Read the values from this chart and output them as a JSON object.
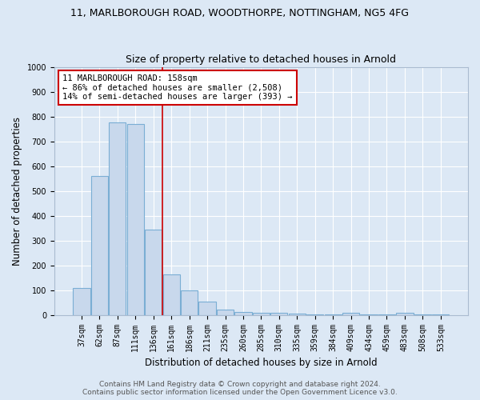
{
  "title": "11, MARLBOROUGH ROAD, WOODTHORPE, NOTTINGHAM, NG5 4FG",
  "subtitle": "Size of property relative to detached houses in Arnold",
  "xlabel": "Distribution of detached houses by size in Arnold",
  "ylabel": "Number of detached properties",
  "categories": [
    "37sqm",
    "62sqm",
    "87sqm",
    "111sqm",
    "136sqm",
    "161sqm",
    "186sqm",
    "211sqm",
    "235sqm",
    "260sqm",
    "285sqm",
    "310sqm",
    "335sqm",
    "359sqm",
    "384sqm",
    "409sqm",
    "434sqm",
    "459sqm",
    "483sqm",
    "508sqm",
    "533sqm"
  ],
  "values": [
    110,
    560,
    775,
    770,
    345,
    165,
    100,
    55,
    20,
    13,
    10,
    8,
    5,
    3,
    1,
    8,
    1,
    1,
    10,
    1,
    1
  ],
  "bar_color": "#c8d8ec",
  "bar_edge_color": "#7aaed4",
  "red_line_x": 4.5,
  "annotation_text": "11 MARLBOROUGH ROAD: 158sqm\n← 86% of detached houses are smaller (2,508)\n14% of semi-detached houses are larger (393) →",
  "annotation_box_color": "#ffffff",
  "annotation_box_edge_color": "#cc0000",
  "ylim": [
    0,
    1000
  ],
  "yticks": [
    0,
    100,
    200,
    300,
    400,
    500,
    600,
    700,
    800,
    900,
    1000
  ],
  "footer_line1": "Contains HM Land Registry data © Crown copyright and database right 2024.",
  "footer_line2": "Contains public sector information licensed under the Open Government Licence v3.0.",
  "bg_color": "#dce8f5",
  "plot_bg_color": "#dce8f5",
  "grid_color": "#ffffff",
  "title_fontsize": 9,
  "subtitle_fontsize": 9,
  "axis_label_fontsize": 8.5,
  "tick_fontsize": 7,
  "footer_fontsize": 6.5
}
